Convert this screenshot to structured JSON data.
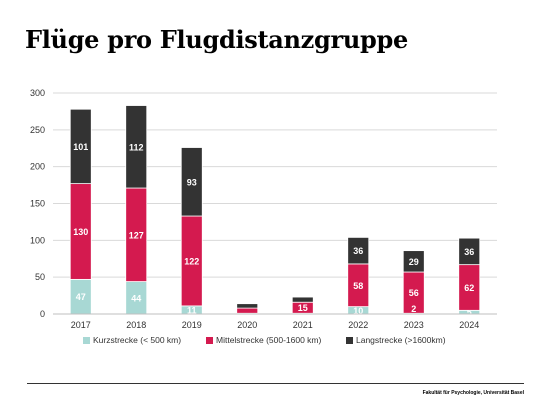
{
  "page": {
    "title": "Flüge pro Flugdistanzgruppe",
    "footer": "Fakultät für Psychologie, Universität Basel"
  },
  "chart_data": {
    "type": "bar",
    "stacked": true,
    "categories": [
      "2017",
      "2018",
      "2019",
      "2020",
      "2021",
      "2022",
      "2023",
      "2024"
    ],
    "ylim": [
      0,
      300
    ],
    "yticks": [
      0,
      50,
      100,
      150,
      200,
      250,
      300
    ],
    "grid": true,
    "legend": "bottom",
    "series": [
      {
        "name": "Kurzstrecke (< 500 km)",
        "color": "#a8d8d4",
        "values": [
          47,
          44,
          11,
          1,
          1,
          10,
          1,
          5
        ],
        "labels": [
          "47",
          "44",
          "11",
          "",
          "",
          "10",
          "",
          "5"
        ]
      },
      {
        "name": "Mittelstrecke (500-1600 km)",
        "color": "#d41a4f",
        "values": [
          130,
          127,
          122,
          7,
          15,
          58,
          56,
          62
        ],
        "labels": [
          "130",
          "127",
          "122",
          "",
          "15",
          "58",
          "56",
          "62"
        ]
      },
      {
        "name": "Langstrecke (>1600km)",
        "color": "#333333",
        "values": [
          101,
          112,
          93,
          6,
          7,
          36,
          29,
          36
        ],
        "labels": [
          "101",
          "112",
          "93",
          "",
          "",
          "36",
          "29",
          "36"
        ]
      }
    ],
    "extra_labels": [
      {
        "category": "2023",
        "text": "2"
      }
    ]
  }
}
